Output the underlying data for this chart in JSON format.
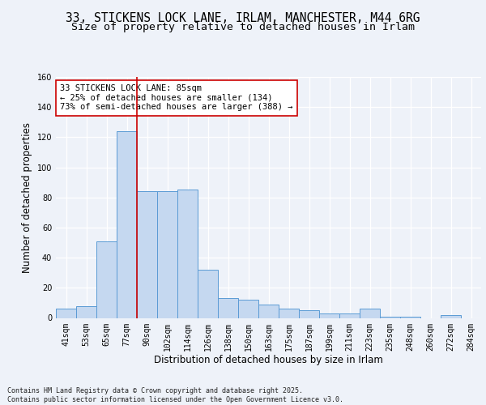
{
  "title_line1": "33, STICKENS LOCK LANE, IRLAM, MANCHESTER, M44 6RG",
  "title_line2": "Size of property relative to detached houses in Irlam",
  "xlabel": "Distribution of detached houses by size in Irlam",
  "ylabel": "Number of detached properties",
  "categories": [
    "41sqm",
    "53sqm",
    "65sqm",
    "77sqm",
    "90sqm",
    "102sqm",
    "114sqm",
    "126sqm",
    "138sqm",
    "150sqm",
    "163sqm",
    "175sqm",
    "187sqm",
    "199sqm",
    "211sqm",
    "223sqm",
    "235sqm",
    "248sqm",
    "260sqm",
    "272sqm",
    "284sqm"
  ],
  "values": [
    6,
    8,
    51,
    124,
    84,
    84,
    85,
    32,
    13,
    12,
    9,
    6,
    5,
    3,
    3,
    6,
    1,
    1,
    0,
    2,
    0
  ],
  "bar_color": "#c5d8f0",
  "bar_edge_color": "#5b9bd5",
  "vline_x": 3.5,
  "vline_color": "#cc0000",
  "annotation_text": "33 STICKENS LOCK LANE: 85sqm\n← 25% of detached houses are smaller (134)\n73% of semi-detached houses are larger (388) →",
  "annotation_box_color": "white",
  "annotation_box_edge": "#cc0000",
  "ylim": [
    0,
    160
  ],
  "yticks": [
    0,
    20,
    40,
    60,
    80,
    100,
    120,
    140,
    160
  ],
  "footer_text": "Contains HM Land Registry data © Crown copyright and database right 2025.\nContains public sector information licensed under the Open Government Licence v3.0.",
  "bg_color": "#eef2f9",
  "plot_bg_color": "#eef2f9",
  "grid_color": "#ffffff",
  "title_fontsize": 10.5,
  "subtitle_fontsize": 9.5,
  "axis_label_fontsize": 8.5,
  "tick_fontsize": 7,
  "footer_fontsize": 6,
  "annotation_fontsize": 7.5
}
